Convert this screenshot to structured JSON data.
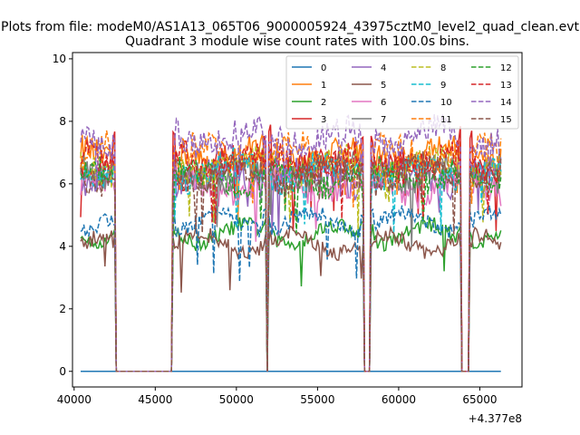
{
  "figure": {
    "suptitle": "Plots from file: modeM0/AS1A13_065T06_9000005924_43975cztM0_level2_quad_clean.evt"
  },
  "chart_data": {
    "type": "line",
    "title": "Quadrant 3 module wise count rates with 100.0s bins.",
    "xlabel": "",
    "ylabel": "",
    "x_offset_label": "+4.377e8",
    "xlim": [
      39900,
      67600
    ],
    "ylim": [
      -0.5,
      10.2
    ],
    "x_ticks": [
      40000,
      45000,
      50000,
      55000,
      60000,
      65000
    ],
    "x_tick_labels": [
      "40000",
      "45000",
      "50000",
      "55000",
      "60000",
      "65000"
    ],
    "y_ticks": [
      0,
      2,
      4,
      6,
      8,
      10
    ],
    "y_tick_labels": [
      "0",
      "2",
      "4",
      "6",
      "8",
      "10"
    ],
    "grid": false,
    "legend_placement": "top-right",
    "legend_columns": 4,
    "x_start": 40400,
    "x_step": 100,
    "x_end": 66300,
    "gaps": [
      [
        42600,
        46000
      ],
      [
        51900,
        51900
      ],
      [
        57900,
        58200
      ],
      [
        63900,
        64300
      ]
    ],
    "series": [
      {
        "name": "0",
        "color": "#1f77b4",
        "dash": "solid",
        "level": 0.0,
        "edge": 0.0
      },
      {
        "name": "1",
        "color": "#ff7f0e",
        "dash": "solid",
        "level": 6.9,
        "edge": 7.1
      },
      {
        "name": "2",
        "color": "#2ca02c",
        "dash": "solid",
        "level": 4.4,
        "edge": 4.6
      },
      {
        "name": "3",
        "color": "#d62728",
        "dash": "solid",
        "level": 6.5,
        "edge": 7.6
      },
      {
        "name": "4",
        "color": "#9467bd",
        "dash": "solid",
        "level": 6.2,
        "edge": 6.8
      },
      {
        "name": "5",
        "color": "#8c564b",
        "dash": "solid",
        "level": 4.1,
        "edge": 4.2
      },
      {
        "name": "6",
        "color": "#e377c2",
        "dash": "solid",
        "level": 5.9,
        "edge": 6.0
      },
      {
        "name": "7",
        "color": "#7f7f7f",
        "dash": "solid",
        "level": 6.3,
        "edge": 6.5
      },
      {
        "name": "8",
        "color": "#bcbd22",
        "dash": "dashed",
        "level": 6.6,
        "edge": 6.6
      },
      {
        "name": "9",
        "color": "#17becf",
        "dash": "dashed",
        "level": 6.4,
        "edge": 6.4
      },
      {
        "name": "10",
        "color": "#1f77b4",
        "dash": "dashed",
        "level": 4.8,
        "edge": 4.9
      },
      {
        "name": "11",
        "color": "#ff7f0e",
        "dash": "dashed",
        "level": 7.0,
        "edge": 6.9
      },
      {
        "name": "12",
        "color": "#2ca02c",
        "dash": "dashed",
        "level": 6.2,
        "edge": 6.3
      },
      {
        "name": "13",
        "color": "#d62728",
        "dash": "dashed",
        "level": 6.7,
        "edge": 6.8
      },
      {
        "name": "14",
        "color": "#9467bd",
        "dash": "dashed",
        "level": 7.5,
        "edge": 7.3
      },
      {
        "name": "15",
        "color": "#8c564b",
        "dash": "dashed",
        "level": 6.3,
        "edge": 6.4
      }
    ]
  }
}
